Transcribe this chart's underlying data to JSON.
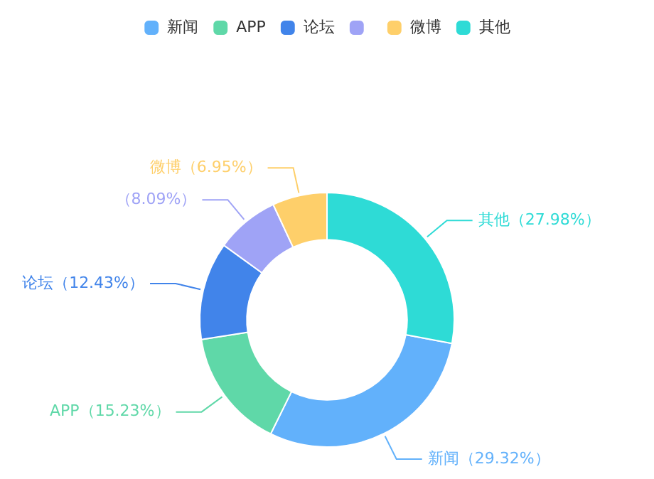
{
  "chart_data": {
    "type": "donut",
    "categories": [
      "新闻",
      "APP",
      "论坛",
      null,
      "微博",
      "其他"
    ],
    "values": [
      29.32,
      15.23,
      12.43,
      8.09,
      6.95,
      27.98
    ],
    "value_labels": [
      "（29.32%）",
      "（15.23%）",
      "（12.43%）",
      "（8.09%）",
      "（6.95%）",
      "（27.98%）"
    ],
    "colors": [
      "#62b1fb",
      "#5fd8a8",
      "#4184ea",
      "#9fa3f6",
      "#fecf6a",
      "#2edbd6"
    ],
    "legend": "top"
  }
}
